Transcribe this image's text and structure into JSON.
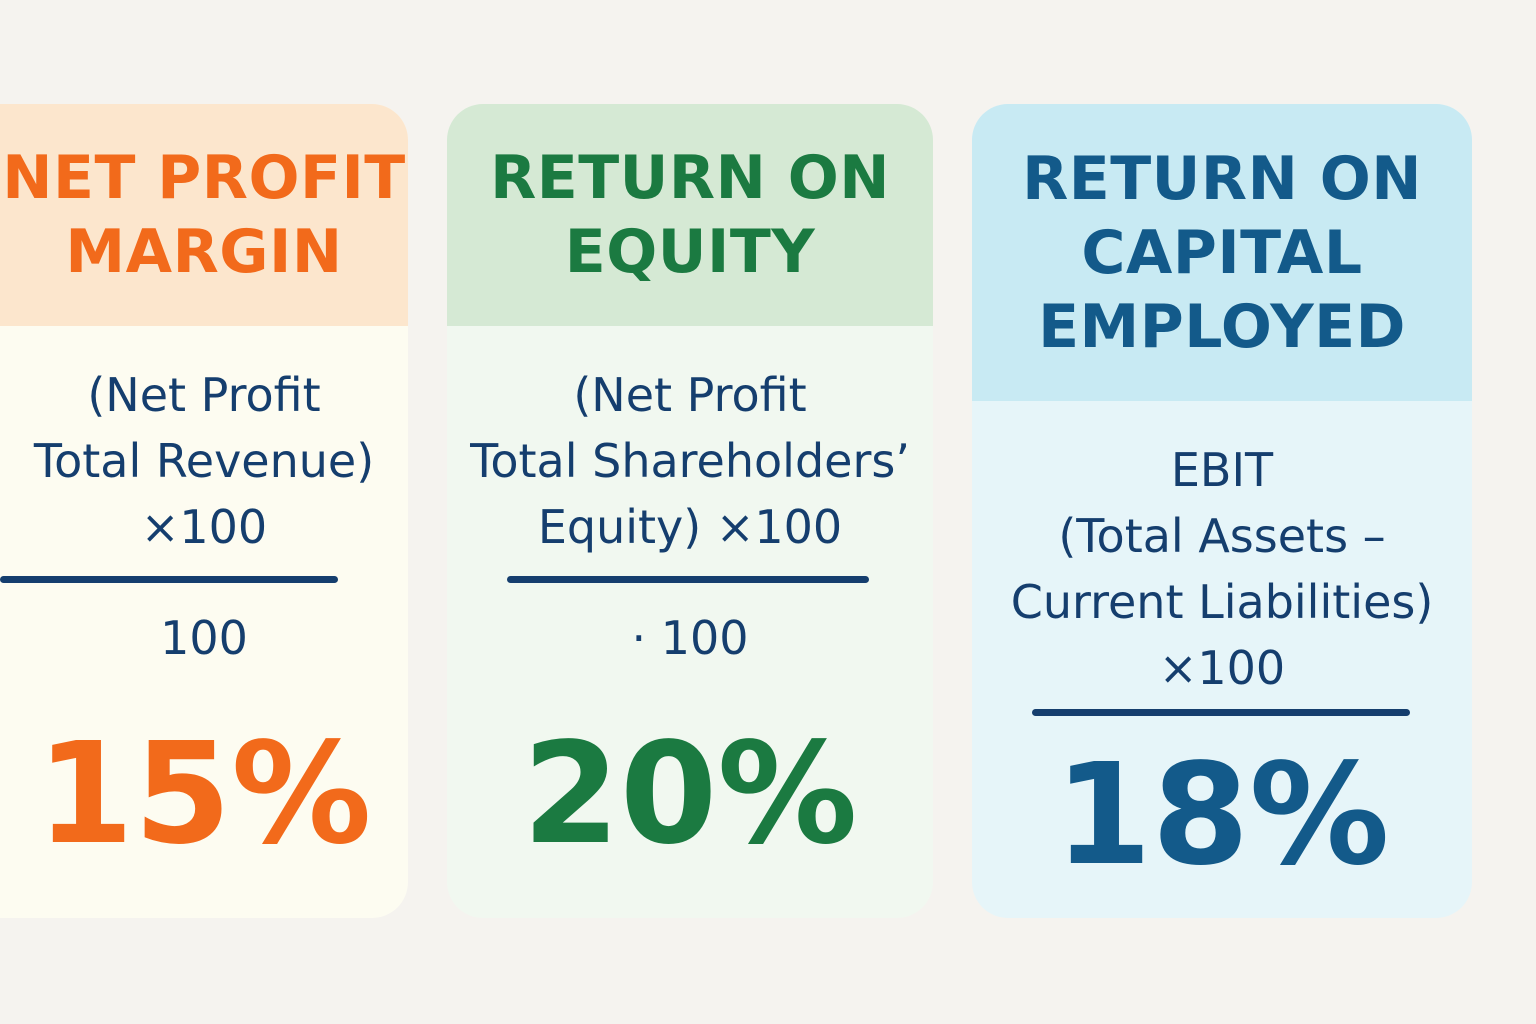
{
  "colors": {
    "background": "#f5f3ef",
    "formula_text": "#153e6e",
    "net_profit_margin_accent": "#f26a1b",
    "return_on_equity_accent": "#1b7a41",
    "return_on_capital_employed_accent": "#135a8a"
  },
  "cards": [
    {
      "title_lines": [
        "NET PROFIT",
        "MARGIN"
      ],
      "formula_lines": [
        "(Net Profit",
        "Total Revenue)",
        "×100"
      ],
      "denominator": "100",
      "result": "15%"
    },
    {
      "title_lines": [
        "RETURN ON",
        "EQUITY"
      ],
      "formula_lines": [
        "(Net Profit",
        "Total Shareholders’",
        "Equity) ×100"
      ],
      "denominator": "· 100",
      "result": "20%"
    },
    {
      "title_lines": [
        "RETURN ON",
        "CAPITAL",
        "EMPLOYED"
      ],
      "formula_lines": [
        "EBIT",
        "(Total Assets –",
        "Current Liabilities)",
        "×100"
      ],
      "result": "18%"
    }
  ]
}
